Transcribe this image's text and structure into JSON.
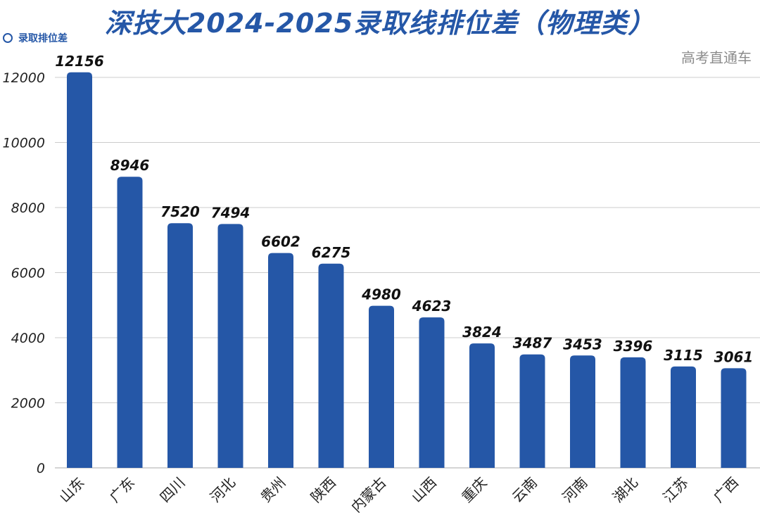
{
  "chart_data": {
    "type": "bar",
    "title": "深技大2024-2025录取线排位差（物理类）",
    "legend": "录取排位差",
    "legend_placement": "top-left",
    "categories": [
      "山东",
      "广东",
      "四川",
      "河北",
      "贵州",
      "陕西",
      "内蒙古",
      "山西",
      "重庆",
      "云南",
      "河南",
      "湖北",
      "江苏",
      "广西"
    ],
    "values": [
      12156,
      8946,
      7520,
      7494,
      6602,
      6275,
      4980,
      4623,
      3824,
      3487,
      3453,
      3396,
      3115,
      3061
    ],
    "yticks": [
      0,
      2000,
      4000,
      6000,
      8000,
      10000,
      12000
    ],
    "ylim": [
      0,
      12000
    ],
    "grid": true,
    "bar_color": "#2557a7"
  },
  "watermark": "高考直通车"
}
